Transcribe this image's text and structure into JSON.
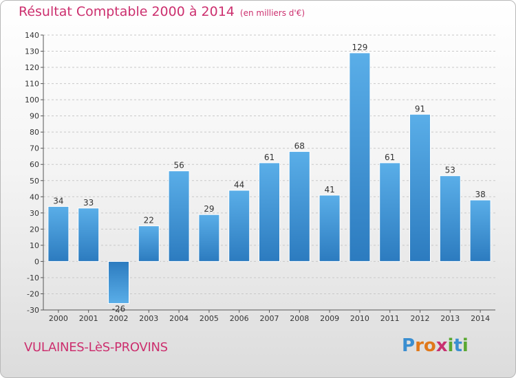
{
  "title": "Résultat Comptable 2000 à 2014",
  "subtitle": "(en milliers d'€)",
  "town": "VULAINES-LèS-PROVINS",
  "logo": {
    "letters": [
      "P",
      "r",
      "o",
      "x",
      "i",
      "t",
      "i"
    ],
    "colors": [
      "#3a8ed0",
      "#e0781a",
      "#e0781a",
      "#c83070",
      "#5aa832",
      "#3a8ed0",
      "#5aa832"
    ]
  },
  "colors": {
    "bar_light": "#5aaee8",
    "bar_dark": "#2c7bbf",
    "title": "#cc2f6e"
  },
  "chart_data": {
    "type": "bar",
    "title": "Résultat Comptable 2000 à 2014",
    "ylabel": "en milliers d'€",
    "categories": [
      "2000",
      "2001",
      "2002",
      "2003",
      "2004",
      "2005",
      "2006",
      "2007",
      "2008",
      "2009",
      "2010",
      "2011",
      "2012",
      "2013",
      "2014"
    ],
    "values": [
      34,
      33,
      -26,
      22,
      56,
      29,
      44,
      61,
      68,
      41,
      129,
      61,
      91,
      53,
      38
    ],
    "ylim": [
      -30,
      140
    ],
    "yticks": [
      -30,
      -20,
      -10,
      0,
      10,
      20,
      30,
      40,
      50,
      60,
      70,
      80,
      90,
      100,
      110,
      120,
      130,
      140
    ],
    "grid": true
  }
}
